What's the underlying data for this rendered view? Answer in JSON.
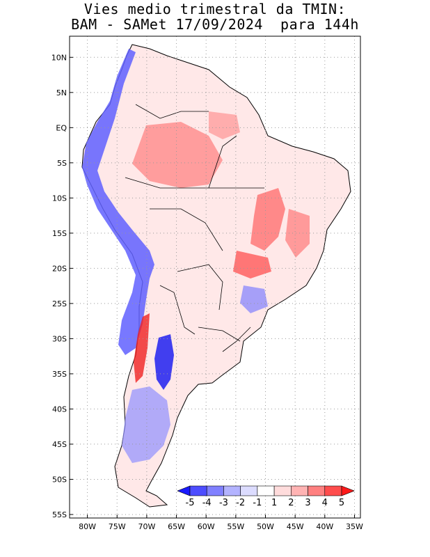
{
  "title": {
    "line1": "Vies medio trimestral da TMIN:",
    "line2": "BAM - SAMet 17/09/2024  para 144h"
  },
  "map": {
    "lon_range": [
      -83,
      -34
    ],
    "lat_range": [
      -55.5,
      13
    ],
    "lat_labels": [
      "10N",
      "5N",
      "EQ",
      "5S",
      "10S",
      "15S",
      "20S",
      "25S",
      "30S",
      "35S",
      "40S",
      "45S",
      "50S",
      "55S"
    ],
    "lat_values": [
      10,
      5,
      0,
      -5,
      -10,
      -15,
      -20,
      -25,
      -30,
      -35,
      -40,
      -45,
      -50,
      -55
    ],
    "lon_labels": [
      "80W",
      "75W",
      "70W",
      "65W",
      "60W",
      "55W",
      "50W",
      "45W",
      "40W",
      "35W"
    ],
    "lon_values": [
      -80,
      -75,
      -70,
      -65,
      -60,
      -55,
      -50,
      -45,
      -40,
      -35
    ],
    "grid": "dotted"
  },
  "colorbar": {
    "labels": [
      "-5",
      "-4",
      "-3",
      "-2",
      "-1",
      "1",
      "2",
      "3",
      "4",
      "5"
    ],
    "colors": [
      "#1a1aff",
      "#4d4dff",
      "#8080ff",
      "#b3b3ff",
      "#dcdcff",
      "#ffffff",
      "#ffdcdc",
      "#ffb3b3",
      "#ff8080",
      "#ff4d4d",
      "#ff1a1a"
    ]
  },
  "colors": {
    "strong_cold": "#1010f0",
    "cold": "#5a5aff",
    "mild_cold": "#b8b8ff",
    "mild_warm": "#ffc8c8",
    "warm": "#ff7a7a",
    "strong_warm": "#f01010"
  }
}
